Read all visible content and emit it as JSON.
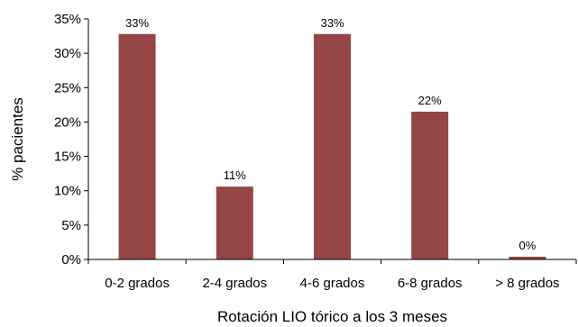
{
  "chart_data": {
    "type": "bar",
    "categories": [
      "0-2 grados",
      "2-4 grados",
      "4-6 grados",
      "6-8 grados",
      "> 8 grados"
    ],
    "values": [
      32.8,
      10.6,
      32.8,
      21.5,
      0.4
    ],
    "data_labels": [
      "33%",
      "11%",
      "33%",
      "22%",
      "0%"
    ],
    "title": "",
    "xlabel": "Rotación LIO tórico a los 3 meses",
    "ylabel": "% pacientes",
    "ylim": [
      0,
      35
    ],
    "yticks": [
      0,
      5,
      10,
      15,
      20,
      25,
      30,
      35
    ],
    "ytick_labels": [
      "0%",
      "5%",
      "10%",
      "15%",
      "20%",
      "25%",
      "30%",
      "35%"
    ],
    "grid": false,
    "legend": "none",
    "bar_color": "#954545"
  }
}
